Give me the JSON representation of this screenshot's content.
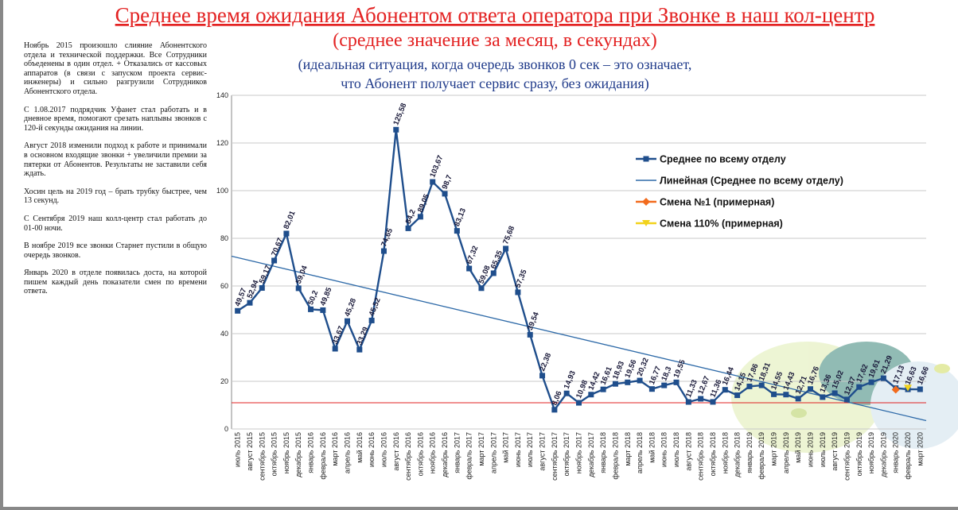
{
  "chart_data": {
    "type": "line",
    "title": "Среднее время ожидания Абонентом ответа оператора при Звонке в наш кол-центр",
    "title_line2": "(среднее значение за месяц, в секундах)",
    "subtitle": [
      "(идеальная ситуация, когда очередь звонков 0 сек – это означает,",
      "что Абонент получает сервис сразу, без ожидания)"
    ],
    "notes": [
      "Ноябрь 2015 произошло слияние Абонентского отдела и технической поддержки. Все Сотрудники объеденены в один отдел. + Отказались от кассовых аппаратов (в связи с запуском проекта сервис-инженеры) и сильно разгрузили Сотрудников Абонентского отдела.",
      "С 1.08.2017 подрядчик Уфанет стал работать и в дневное время, помогают срезать наплывы звонков с 120-й секунды ожидания на линии.",
      "Август 2018 изменили подход к работе и принимали в основном входящие звонки + увеличили премии за пятерки от Абонентов. Результаты не заставили себя ждать.",
      "Хосин цель на 2019 год – брать трубку быстрее, чем 13 секунд.",
      "С Сентября 2019 наш колл-центр стал работать до 01-00 ночи.",
      "В ноябре 2019 все звонки Старнет пустили в общую очередь звонков.",
      "Январь 2020 в отделе появилась доста, на которой пишем каждый день показатели смен по времени ответа."
    ],
    "categories": [
      "июль 2015",
      "август 2015",
      "сентябрь 2015",
      "октябрь 2015",
      "ноябрь 2015",
      "декабрь 2015",
      "январь 2016",
      "февраль 2016",
      "март 2016",
      "апрель 2016",
      "май 2016",
      "июнь 2016",
      "июль 2016",
      "август 2016",
      "сентябрь 2016",
      "октябрь 2016",
      "ноябрь 2016",
      "декабрь 2016",
      "январь 2017",
      "февраль 2017",
      "март 2017",
      "апрель 2017",
      "май 2017",
      "июнь 2017",
      "июль 2017",
      "август 2017",
      "сентябрь 2017",
      "октябрь 2017",
      "ноябрь 2017",
      "декабрь 2017",
      "январь 2018",
      "февраль 2018",
      "март 2018",
      "апрель 2018",
      "май 2018",
      "июнь 2018",
      "июль 2018",
      "август 2018",
      "сентябрь 2018",
      "октябрь 2018",
      "ноябрь 2018",
      "декабрь 2018",
      "январь 2019",
      "февраль 2019",
      "март 2019",
      "апрель 2019",
      "май 2019",
      "июнь 2019",
      "июль 2019",
      "август 2019",
      "сентябрь 2019",
      "октябрь 2019",
      "ноябрь 2019",
      "декабрь 2019",
      "январь 2020",
      "февраль 2020",
      "март 2020"
    ],
    "series": [
      {
        "name": "Среднее по всему отделу",
        "color": "#1f4e8c",
        "values": [
          49.57,
          52.94,
          59.17,
          70.67,
          82.01,
          59.04,
          50.2,
          49.85,
          33.67,
          45.28,
          33.29,
          45.52,
          74.65,
          125.58,
          84.2,
          89.05,
          103.67,
          98.7,
          83.13,
          67.32,
          59.08,
          65.35,
          75.68,
          57.35,
          39.54,
          22.38,
          8.06,
          14.93,
          10.98,
          14.42,
          16.61,
          18.93,
          19.56,
          20.32,
          16.77,
          18.3,
          19.55,
          11.33,
          12.67,
          11.36,
          16.44,
          14.15,
          17.86,
          18.31,
          14.55,
          14.43,
          12.71,
          16.76,
          13.36,
          15.02,
          12.37,
          17.62,
          19.61,
          21.29,
          17.13,
          16.63,
          16.66
        ],
        "value_labels": [
          "49,57",
          "52,94",
          "59,17",
          "70,67",
          "82,01",
          "59,04",
          "50,2",
          "49,85",
          "33,67",
          "45,28",
          "33,29",
          "45,52",
          "74,65",
          "125,58",
          "84,2",
          "89,05",
          "103,67",
          "98,7",
          "83,13",
          "67,32",
          "59,08",
          "65,35",
          "75,68",
          "57,35",
          "39,54",
          "22,38",
          "8,06",
          "14,93",
          "10,98",
          "14,42",
          "16,61",
          "18,93",
          "19,56",
          "20,32",
          "16,77",
          "18,3",
          "19,55",
          "11,33",
          "12,67",
          "11,36",
          "16,44",
          "14,15",
          "17,86",
          "18,31",
          "14,55",
          "14,43",
          "12,71",
          "16,76",
          "13,36",
          "15,02",
          "12,37",
          "17,62",
          "19,61",
          "21,29",
          "17,13",
          "16,63",
          "16,66"
        ]
      },
      {
        "name": "Смена №1 (примерная)",
        "color": "#f26b1d",
        "marker": "diamond",
        "values": [
          null,
          null,
          null,
          null,
          null,
          null,
          null,
          null,
          null,
          null,
          null,
          null,
          null,
          null,
          null,
          null,
          null,
          null,
          null,
          null,
          null,
          null,
          null,
          null,
          null,
          null,
          null,
          null,
          null,
          null,
          null,
          null,
          null,
          null,
          null,
          null,
          null,
          null,
          null,
          null,
          null,
          null,
          null,
          null,
          null,
          null,
          null,
          null,
          null,
          null,
          null,
          null,
          null,
          null,
          16.5,
          null,
          null
        ]
      },
      {
        "name": "Смена 110% (примерная)",
        "color": "#f2d21b",
        "marker": "triangle",
        "values": [
          null,
          null,
          null,
          null,
          null,
          null,
          null,
          null,
          null,
          null,
          null,
          null,
          null,
          null,
          null,
          null,
          null,
          null,
          null,
          null,
          null,
          null,
          null,
          null,
          null,
          null,
          null,
          null,
          null,
          null,
          null,
          null,
          null,
          null,
          null,
          null,
          null,
          null,
          null,
          null,
          null,
          null,
          null,
          null,
          null,
          null,
          null,
          null,
          null,
          null,
          null,
          null,
          null,
          null,
          null,
          17.2,
          null
        ]
      }
    ],
    "trendline": {
      "name": "Линейная (Среднее по всему отделу)",
      "color": "#2e6aa8",
      "start": 72.5,
      "end": 3.5
    },
    "reference_line": {
      "value": 11,
      "color": "#e02020"
    },
    "ylim": [
      0,
      140
    ],
    "yticks": [
      0,
      20,
      40,
      60,
      80,
      100,
      120,
      140
    ],
    "grid": true,
    "legend": "right"
  }
}
